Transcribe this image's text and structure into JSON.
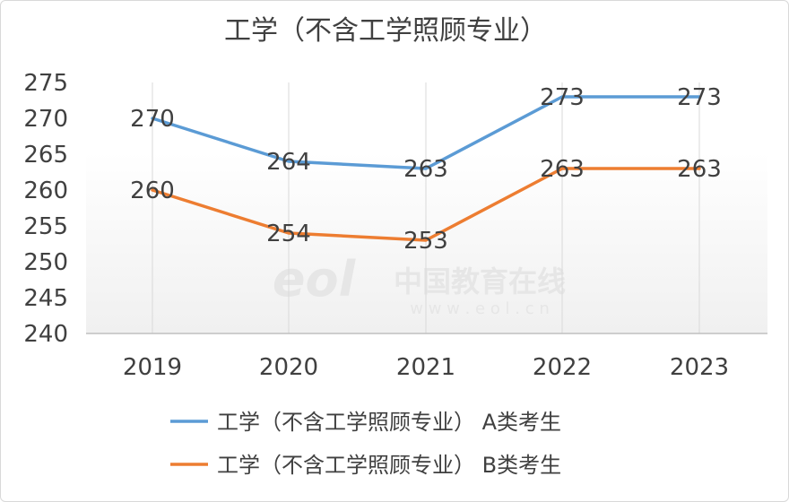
{
  "chart_data": {
    "type": "line",
    "title": "工学（不含工学照顾专业）",
    "categories": [
      "2019",
      "2020",
      "2021",
      "2022",
      "2023"
    ],
    "series": [
      {
        "name": "工学（不含工学照顾专业） A类考生",
        "values": [
          270,
          264,
          263,
          273,
          273
        ],
        "color": "#5b9bd5"
      },
      {
        "name": "工学（不含工学照顾专业） B类考生",
        "values": [
          260,
          254,
          253,
          263,
          263
        ],
        "color": "#ed7d31"
      }
    ],
    "ylim": [
      240,
      275
    ],
    "yticks": [
      240,
      245,
      250,
      255,
      260,
      265,
      270,
      275
    ],
    "grid": "vertical",
    "legend": "bottom",
    "data_labels": true
  },
  "watermark": {
    "brand": "中国教育在线",
    "url": "w w w . e o l . c n"
  }
}
